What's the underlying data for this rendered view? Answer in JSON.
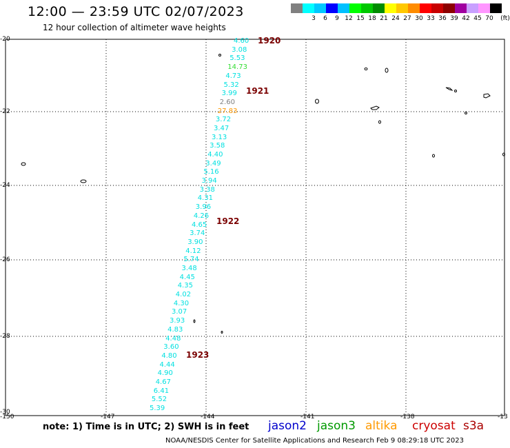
{
  "title": "12:00 — 23:59 UTC 02/07/2023",
  "subtitle": "12 hour collection of altimeter wave heights",
  "colorbar": {
    "unit": "(ft)",
    "swatches": [
      {
        "label": "",
        "color": "#808080"
      },
      {
        "label": "3",
        "color": "#00ffff"
      },
      {
        "label": "6",
        "color": "#00c8ff"
      },
      {
        "label": "9",
        "color": "#0000ff"
      },
      {
        "label": "12",
        "color": "#00c0ff"
      },
      {
        "label": "15",
        "color": "#00ff00"
      },
      {
        "label": "18",
        "color": "#00c800"
      },
      {
        "label": "21",
        "color": "#008c00"
      },
      {
        "label": "24",
        "color": "#ffff00"
      },
      {
        "label": "27",
        "color": "#ffc800"
      },
      {
        "label": "30",
        "color": "#ff8c00"
      },
      {
        "label": "33",
        "color": "#ff0000"
      },
      {
        "label": "36",
        "color": "#c80000"
      },
      {
        "label": "39",
        "color": "#8c0000"
      },
      {
        "label": "42",
        "color": "#a000a0"
      },
      {
        "label": "45",
        "color": "#c8a0ff"
      },
      {
        "label": "70",
        "color": "#ff96ff"
      },
      {
        "label": "",
        "color": "#000000"
      }
    ]
  },
  "lat_labels": [
    "-20",
    "-22",
    "-24",
    "-26",
    "-28",
    "-30"
  ],
  "lon_labels": [
    "-150",
    "-147",
    "-144",
    "-141",
    "-138",
    "-13"
  ],
  "wave_heights": [
    {
      "value": "4.60",
      "color": "#00e0e0"
    },
    {
      "value": "3.08",
      "color": "#00e0e0"
    },
    {
      "value": "5.53",
      "color": "#00e0e0"
    },
    {
      "value": "14.73",
      "color": "#33dd33"
    },
    {
      "value": "4.73",
      "color": "#00e0e0"
    },
    {
      "value": "5.32",
      "color": "#00e0e0"
    },
    {
      "value": "3.99",
      "color": "#00e0e0"
    },
    {
      "value": "2.60",
      "color": "#808080"
    },
    {
      "value": "27.83",
      "color": "#ff9900"
    },
    {
      "value": "3.72",
      "color": "#00e0e0"
    },
    {
      "value": "3.47",
      "color": "#00e0e0"
    },
    {
      "value": "3.13",
      "color": "#00e0e0"
    },
    {
      "value": "3.58",
      "color": "#00e0e0"
    },
    {
      "value": "4.40",
      "color": "#00e0e0"
    },
    {
      "value": "3.49",
      "color": "#00e0e0"
    },
    {
      "value": "5.16",
      "color": "#00e0e0"
    },
    {
      "value": "3.94",
      "color": "#00e0e0"
    },
    {
      "value": "3.38",
      "color": "#00e0e0"
    },
    {
      "value": "4.31",
      "color": "#00e0e0"
    },
    {
      "value": "3.96",
      "color": "#00e0e0"
    },
    {
      "value": "4.26",
      "color": "#00e0e0"
    },
    {
      "value": "4.65",
      "color": "#00e0e0"
    },
    {
      "value": "3.74",
      "color": "#00e0e0"
    },
    {
      "value": "3.90",
      "color": "#00e0e0"
    },
    {
      "value": "4.12",
      "color": "#00e0e0"
    },
    {
      "value": "5.74",
      "color": "#00e0e0"
    },
    {
      "value": "3.48",
      "color": "#00e0e0"
    },
    {
      "value": "4.45",
      "color": "#00e0e0"
    },
    {
      "value": "4.35",
      "color": "#00e0e0"
    },
    {
      "value": "4.02",
      "color": "#00e0e0"
    },
    {
      "value": "4.30",
      "color": "#00e0e0"
    },
    {
      "value": "3.07",
      "color": "#00e0e0"
    },
    {
      "value": "3.93",
      "color": "#00e0e0"
    },
    {
      "value": "4.83",
      "color": "#00e0e0"
    },
    {
      "value": "4.48",
      "color": "#00e0e0"
    },
    {
      "value": "3.60",
      "color": "#00e0e0"
    },
    {
      "value": "4.80",
      "color": "#00e0e0"
    },
    {
      "value": "4.44",
      "color": "#00e0e0"
    },
    {
      "value": "4.90",
      "color": "#00e0e0"
    },
    {
      "value": "4.67",
      "color": "#00e0e0"
    },
    {
      "value": "6.41",
      "color": "#00e0e0"
    },
    {
      "value": "5.52",
      "color": "#00e0e0"
    },
    {
      "value": "5.39",
      "color": "#00e0e0"
    }
  ],
  "pass_times": [
    "1920",
    "1921",
    "1922",
    "1923"
  ],
  "note": "note: 1) Time is in UTC; 2) SWH is in feet",
  "satellites": [
    {
      "name": "jason2",
      "color": "#0000cc"
    },
    {
      "name": "jason3",
      "color": "#009900"
    },
    {
      "name": "altika",
      "color": "#ff9900"
    },
    {
      "name": "cryosat",
      "color": "#cc0000"
    },
    {
      "name": "s3a",
      "color": "#aa0000"
    }
  ],
  "credit": "NOAA/NESDIS Center for Satellite Applications and Research    Feb  9 08:29:18 UTC 2023"
}
